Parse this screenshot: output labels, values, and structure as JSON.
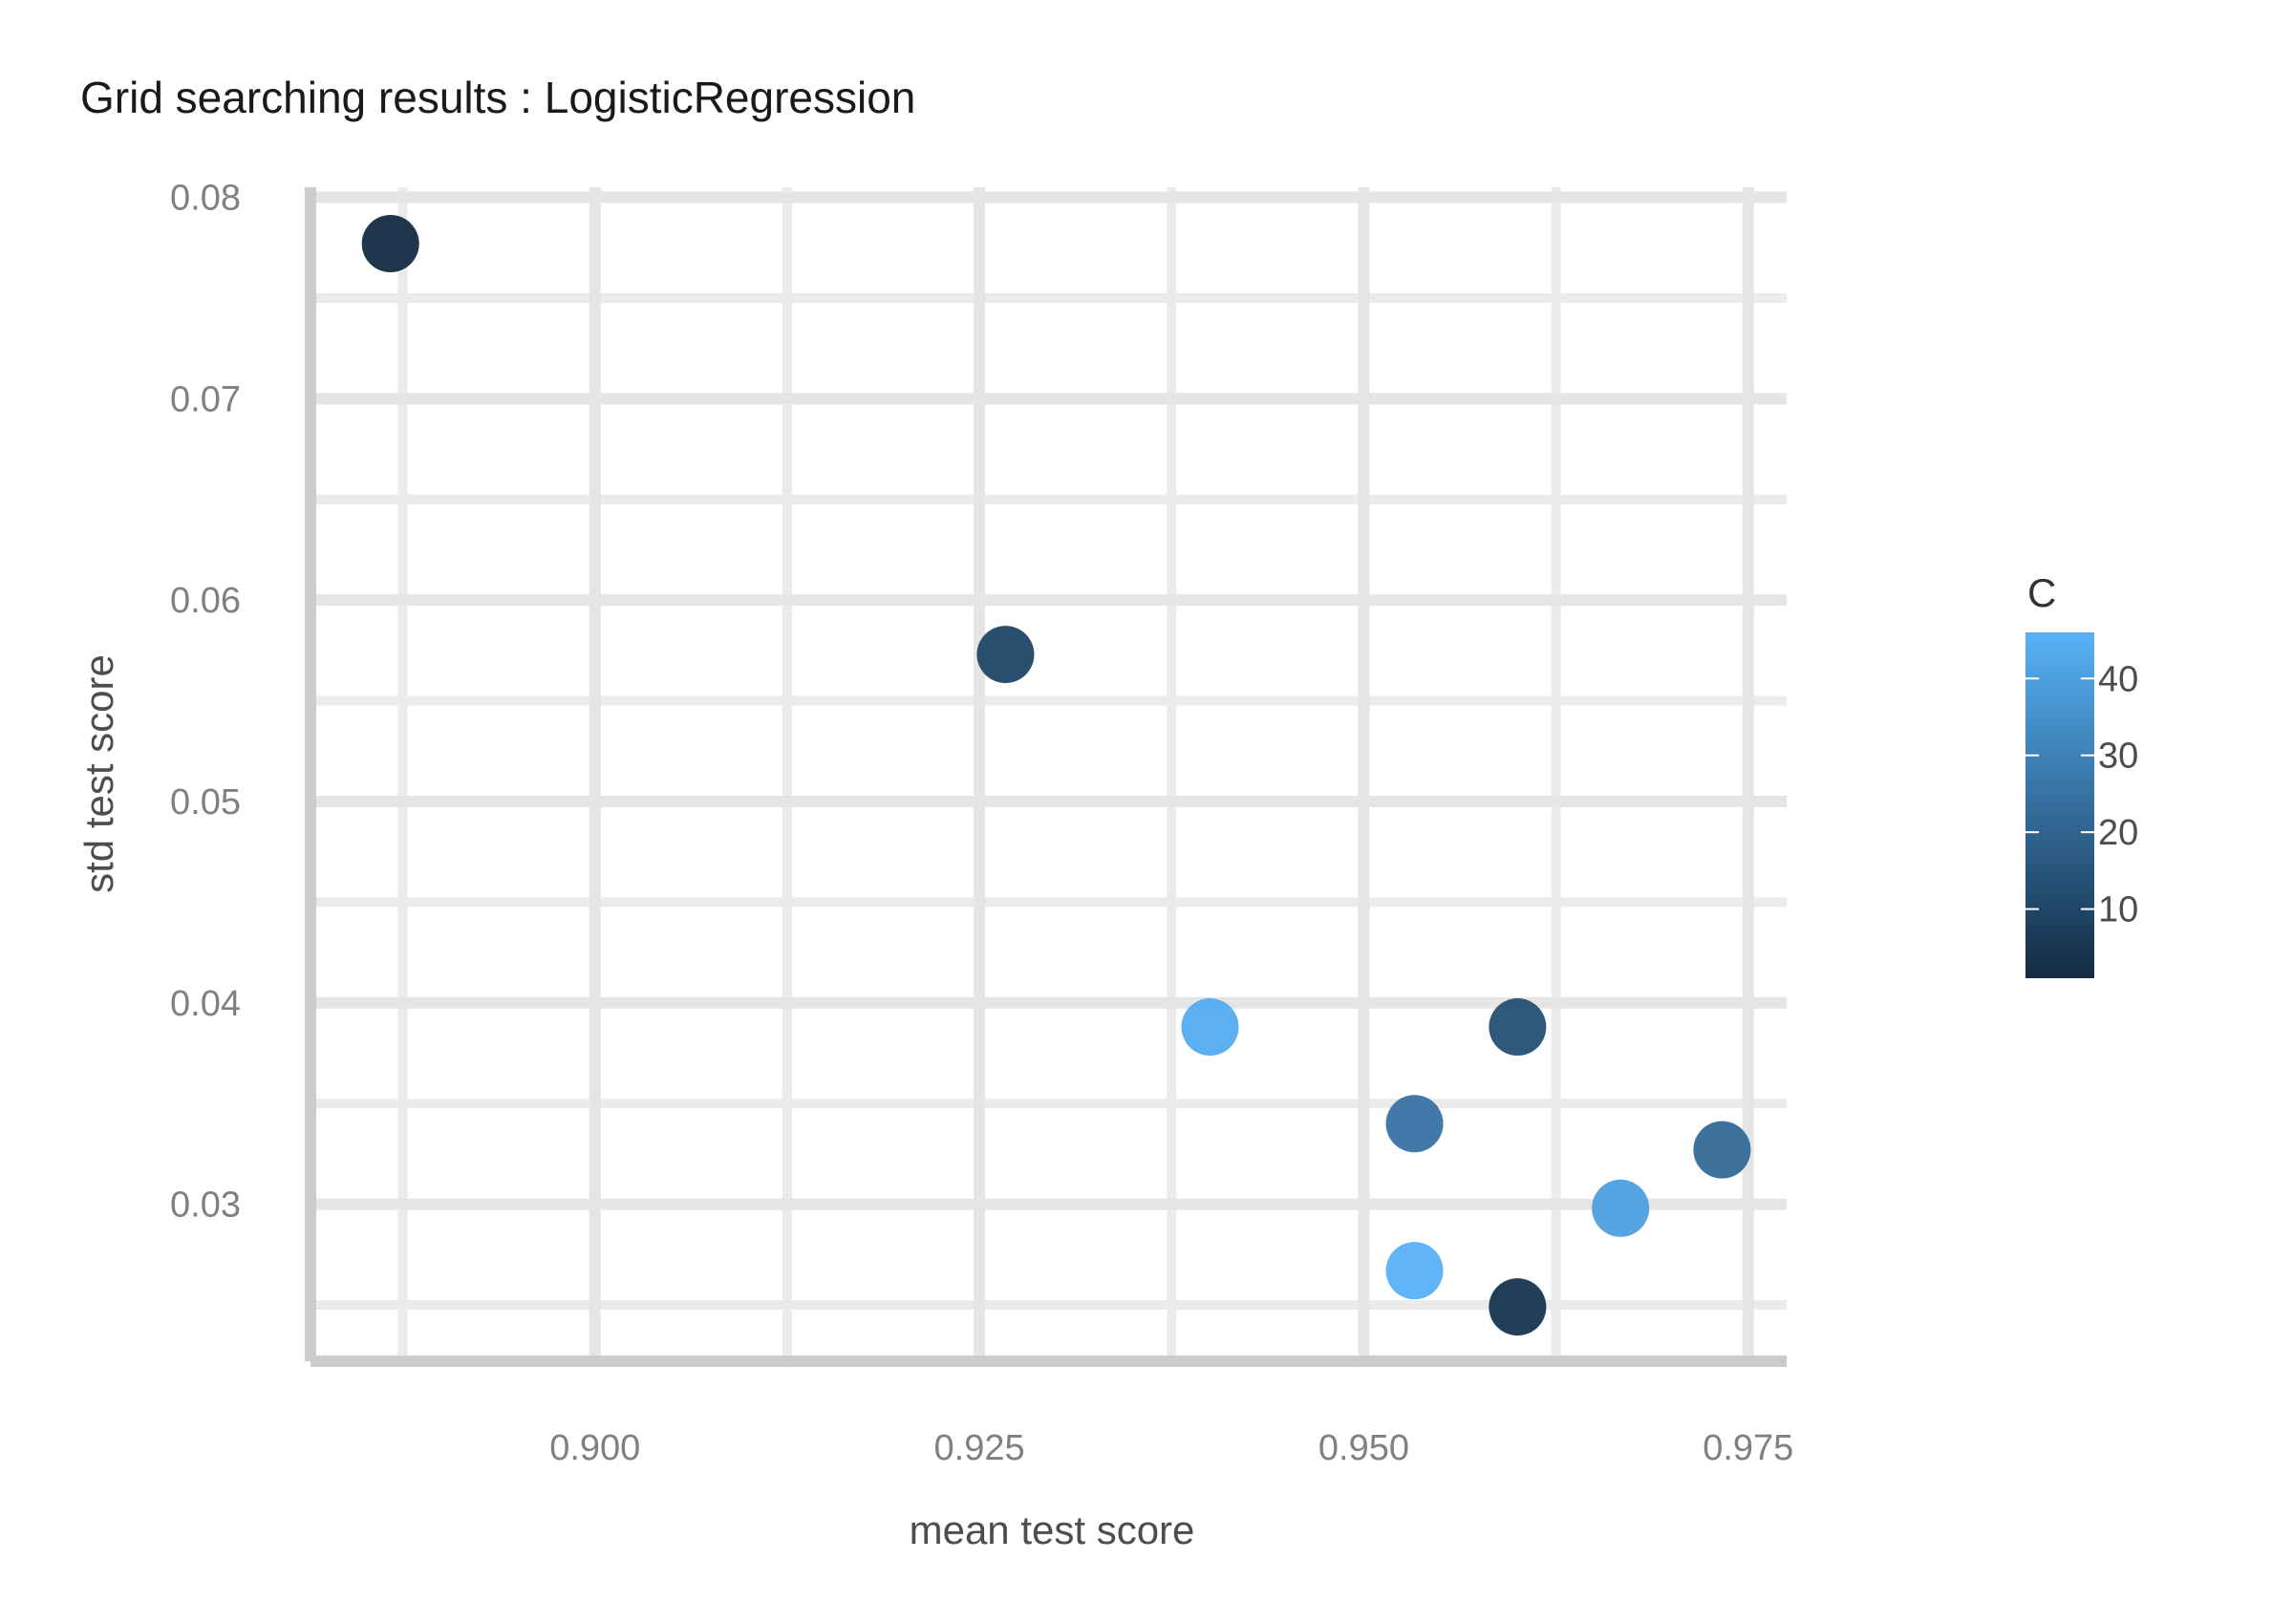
{
  "chart_data": {
    "type": "scatter",
    "title": "Grid searching results :  LogisticRegression",
    "xlabel": "mean test score",
    "ylabel": "std test score",
    "xlim": [
      0.8815,
      0.9775
    ],
    "ylim": [
      0.0222,
      0.0805
    ],
    "x_major_ticks": [
      0.9,
      0.925,
      0.95,
      0.975
    ],
    "x_minor_ticks": [
      0.8875,
      0.9125,
      0.9375,
      0.9625
    ],
    "x_tick_labels": [
      "0.900",
      "0.925",
      "0.950",
      "0.975"
    ],
    "y_major_ticks": [
      0.03,
      0.04,
      0.05,
      0.06,
      0.07,
      0.08
    ],
    "y_minor_ticks": [
      0.025,
      0.035,
      0.045,
      0.055,
      0.065,
      0.075
    ],
    "y_tick_labels": [
      "0.03",
      "0.04",
      "0.05",
      "0.06",
      "0.07",
      "0.08"
    ],
    "grid": true,
    "color_variable": "C",
    "color_scale": {
      "low": "#132B43",
      "high": "#56B1F7",
      "min": 1,
      "max": 46
    },
    "legend": {
      "title": "C",
      "placement": "right",
      "ticks": [
        10,
        20,
        30,
        40
      ],
      "tick_labels": [
        "10",
        "20",
        "30",
        "40"
      ]
    },
    "points": [
      {
        "x": 0.8867,
        "y": 0.0777,
        "c": 1
      },
      {
        "x": 0.9267,
        "y": 0.0573,
        "c": 10
      },
      {
        "x": 0.94,
        "y": 0.0388,
        "c": 44
      },
      {
        "x": 0.96,
        "y": 0.0388,
        "c": 13
      },
      {
        "x": 0.9533,
        "y": 0.034,
        "c": 25
      },
      {
        "x": 0.9733,
        "y": 0.0327,
        "c": 22
      },
      {
        "x": 0.9667,
        "y": 0.0298,
        "c": 40
      },
      {
        "x": 0.9533,
        "y": 0.0267,
        "c": 46
      },
      {
        "x": 0.96,
        "y": 0.0249,
        "c": 4
      }
    ]
  }
}
